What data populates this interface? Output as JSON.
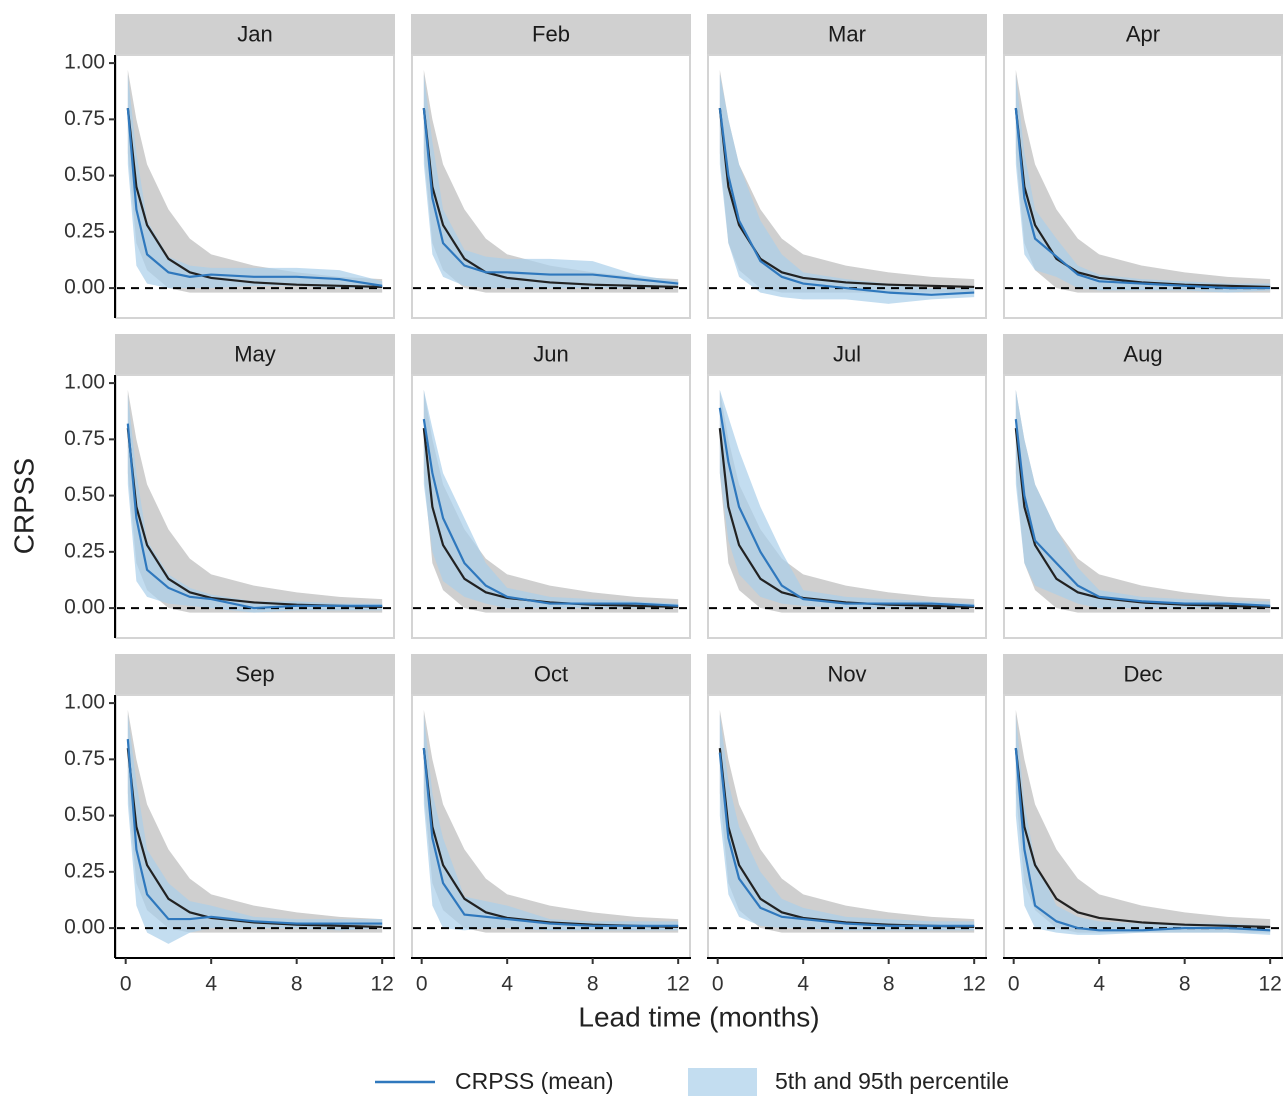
{
  "chart_data": {
    "type": "line",
    "xlabel": "Lead time (months)",
    "ylabel": "CRPSS",
    "xlim": [
      -0.5,
      12.6
    ],
    "ylim": [
      -0.133,
      1.036
    ],
    "xticks": [
      0,
      4,
      8,
      12
    ],
    "yticks": [
      {
        "value": 0,
        "label": "0.00"
      },
      {
        "value": 0.25,
        "label": "0.25"
      },
      {
        "value": 0.5,
        "label": "0.50"
      },
      {
        "value": 0.75,
        "label": "0.75"
      },
      {
        "value": 1,
        "label": "1.00"
      }
    ],
    "hline": 0,
    "x": [
      0.1,
      0.5,
      1,
      2,
      3,
      4,
      6,
      8,
      10,
      12
    ],
    "mean_line": {
      "name": "CRPSS (mean)",
      "color": "#2f78bd"
    },
    "percentile_band": {
      "name": "5th and 95th percentile",
      "color": "#a9cfea"
    },
    "reference_line": {
      "color": "#222222"
    },
    "reference_band": {
      "color": "#cfcfcf"
    },
    "panels": [
      {
        "title": "Jan",
        "reference_mean": [
          0.8,
          0.45,
          0.28,
          0.13,
          0.07,
          0.045,
          0.025,
          0.015,
          0.01,
          0.005
        ],
        "reference_lower": [
          0.6,
          0.2,
          0.08,
          0,
          -0.02,
          -0.02,
          -0.02,
          -0.02,
          -0.02,
          -0.02
        ],
        "reference_upper": [
          0.97,
          0.75,
          0.55,
          0.35,
          0.22,
          0.15,
          0.1,
          0.07,
          0.05,
          0.04
        ],
        "mean": [
          0.8,
          0.35,
          0.15,
          0.07,
          0.05,
          0.06,
          0.05,
          0.05,
          0.04,
          0.01
        ],
        "lower": [
          0.55,
          0.1,
          0.02,
          0,
          0,
          0,
          0.01,
          0.01,
          0,
          0
        ],
        "upper": [
          0.95,
          0.6,
          0.3,
          0.14,
          0.1,
          0.09,
          0.09,
          0.09,
          0.08,
          0.03
        ]
      },
      {
        "title": "Feb",
        "reference_mean": [
          0.8,
          0.45,
          0.28,
          0.13,
          0.07,
          0.045,
          0.025,
          0.015,
          0.01,
          0.005
        ],
        "reference_lower": [
          0.6,
          0.2,
          0.08,
          0,
          -0.02,
          -0.02,
          -0.02,
          -0.02,
          -0.02,
          -0.02
        ],
        "reference_upper": [
          0.97,
          0.75,
          0.55,
          0.35,
          0.22,
          0.15,
          0.1,
          0.07,
          0.05,
          0.04
        ],
        "mean": [
          0.8,
          0.4,
          0.2,
          0.1,
          0.07,
          0.07,
          0.06,
          0.06,
          0.04,
          0.02
        ],
        "lower": [
          0.55,
          0.15,
          0.05,
          0.01,
          0,
          0,
          0,
          0,
          0,
          0
        ],
        "upper": [
          0.95,
          0.65,
          0.35,
          0.17,
          0.14,
          0.13,
          0.13,
          0.12,
          0.06,
          0.03
        ]
      },
      {
        "title": "Mar",
        "reference_mean": [
          0.8,
          0.45,
          0.28,
          0.13,
          0.07,
          0.045,
          0.025,
          0.015,
          0.01,
          0.005
        ],
        "reference_lower": [
          0.6,
          0.2,
          0.08,
          0,
          -0.02,
          -0.02,
          -0.02,
          -0.02,
          -0.02,
          -0.02
        ],
        "reference_upper": [
          0.97,
          0.75,
          0.55,
          0.35,
          0.22,
          0.15,
          0.1,
          0.07,
          0.05,
          0.04
        ],
        "mean": [
          0.8,
          0.5,
          0.3,
          0.12,
          0.05,
          0.02,
          0,
          -0.02,
          -0.03,
          -0.02
        ],
        "lower": [
          0.55,
          0.2,
          0.05,
          -0.02,
          -0.04,
          -0.05,
          -0.05,
          -0.07,
          -0.05,
          -0.04
        ],
        "upper": [
          0.95,
          0.75,
          0.55,
          0.3,
          0.15,
          0.07,
          0.04,
          0.02,
          0,
          0
        ]
      },
      {
        "title": "Apr",
        "reference_mean": [
          0.8,
          0.45,
          0.28,
          0.13,
          0.07,
          0.045,
          0.025,
          0.015,
          0.01,
          0.005
        ],
        "reference_lower": [
          0.6,
          0.2,
          0.08,
          0,
          -0.02,
          -0.02,
          -0.02,
          -0.02,
          -0.02,
          -0.02
        ],
        "reference_upper": [
          0.97,
          0.75,
          0.55,
          0.35,
          0.22,
          0.15,
          0.1,
          0.07,
          0.05,
          0.04
        ],
        "mean": [
          0.8,
          0.4,
          0.22,
          0.14,
          0.06,
          0.03,
          0.02,
          0.01,
          0,
          0
        ],
        "lower": [
          0.55,
          0.15,
          0.08,
          0.05,
          0,
          -0.01,
          -0.01,
          -0.01,
          -0.02,
          -0.01
        ],
        "upper": [
          0.95,
          0.6,
          0.35,
          0.22,
          0.1,
          0.06,
          0.04,
          0.03,
          0.02,
          0.02
        ]
      },
      {
        "title": "May",
        "reference_mean": [
          0.8,
          0.45,
          0.28,
          0.13,
          0.07,
          0.045,
          0.025,
          0.015,
          0.01,
          0.005
        ],
        "reference_lower": [
          0.6,
          0.2,
          0.08,
          0,
          -0.02,
          -0.02,
          -0.02,
          -0.02,
          -0.02,
          -0.02
        ],
        "reference_upper": [
          0.97,
          0.75,
          0.55,
          0.35,
          0.22,
          0.15,
          0.1,
          0.07,
          0.05,
          0.04
        ],
        "mean": [
          0.82,
          0.4,
          0.17,
          0.09,
          0.05,
          0.04,
          0,
          0.01,
          0.01,
          0.01
        ],
        "lower": [
          0.55,
          0.12,
          0.05,
          0.02,
          0.01,
          0,
          -0.02,
          -0.01,
          -0.01,
          -0.01
        ],
        "upper": [
          0.95,
          0.6,
          0.3,
          0.15,
          0.09,
          0.06,
          0.03,
          0.03,
          0.02,
          0.02
        ]
      },
      {
        "title": "Jun",
        "reference_mean": [
          0.8,
          0.45,
          0.28,
          0.13,
          0.07,
          0.045,
          0.025,
          0.015,
          0.01,
          0.005
        ],
        "reference_lower": [
          0.6,
          0.2,
          0.08,
          0,
          -0.02,
          -0.02,
          -0.02,
          -0.02,
          -0.02,
          -0.02
        ],
        "reference_upper": [
          0.97,
          0.75,
          0.55,
          0.35,
          0.22,
          0.15,
          0.1,
          0.07,
          0.05,
          0.04
        ],
        "mean": [
          0.84,
          0.6,
          0.4,
          0.2,
          0.1,
          0.05,
          0.02,
          0.02,
          0.02,
          0.01
        ],
        "lower": [
          0.55,
          0.25,
          0.12,
          0.05,
          0.02,
          0,
          0,
          0,
          0,
          0
        ],
        "upper": [
          0.97,
          0.8,
          0.6,
          0.4,
          0.2,
          0.09,
          0.05,
          0.04,
          0.03,
          0.02
        ]
      },
      {
        "title": "Jul",
        "reference_mean": [
          0.8,
          0.45,
          0.28,
          0.13,
          0.07,
          0.045,
          0.025,
          0.015,
          0.01,
          0.005
        ],
        "reference_lower": [
          0.6,
          0.2,
          0.08,
          0,
          -0.02,
          -0.02,
          -0.02,
          -0.02,
          -0.02,
          -0.02
        ],
        "reference_upper": [
          0.97,
          0.75,
          0.55,
          0.35,
          0.22,
          0.15,
          0.1,
          0.07,
          0.05,
          0.04
        ],
        "mean": [
          0.89,
          0.65,
          0.45,
          0.25,
          0.1,
          0.04,
          0.02,
          0.02,
          0.02,
          0.01
        ],
        "lower": [
          0.6,
          0.3,
          0.15,
          0.05,
          0.02,
          0.01,
          0,
          0,
          0,
          0
        ],
        "upper": [
          0.97,
          0.85,
          0.7,
          0.45,
          0.25,
          0.08,
          0.05,
          0.04,
          0.03,
          0.02
        ]
      },
      {
        "title": "Aug",
        "reference_mean": [
          0.8,
          0.45,
          0.28,
          0.13,
          0.07,
          0.045,
          0.025,
          0.015,
          0.01,
          0.005
        ],
        "reference_lower": [
          0.6,
          0.2,
          0.08,
          0,
          -0.02,
          -0.02,
          -0.02,
          -0.02,
          -0.02,
          -0.02
        ],
        "reference_upper": [
          0.97,
          0.75,
          0.55,
          0.35,
          0.22,
          0.15,
          0.1,
          0.07,
          0.05,
          0.04
        ],
        "mean": [
          0.84,
          0.5,
          0.3,
          0.2,
          0.1,
          0.05,
          0.03,
          0.02,
          0.02,
          0.01
        ],
        "lower": [
          0.55,
          0.2,
          0.1,
          0.06,
          0.02,
          0,
          0,
          0,
          0,
          0
        ],
        "upper": [
          0.97,
          0.75,
          0.55,
          0.35,
          0.18,
          0.08,
          0.05,
          0.04,
          0.03,
          0.03
        ]
      },
      {
        "title": "Sep",
        "reference_mean": [
          0.8,
          0.45,
          0.28,
          0.13,
          0.07,
          0.045,
          0.025,
          0.015,
          0.01,
          0.005
        ],
        "reference_lower": [
          0.6,
          0.2,
          0.08,
          0,
          -0.02,
          -0.02,
          -0.02,
          -0.02,
          -0.02,
          -0.02
        ],
        "reference_upper": [
          0.97,
          0.75,
          0.55,
          0.35,
          0.22,
          0.15,
          0.1,
          0.07,
          0.05,
          0.04
        ],
        "mean": [
          0.84,
          0.35,
          0.15,
          0.04,
          0.04,
          0.05,
          0.03,
          0.02,
          0.02,
          0.02
        ],
        "lower": [
          0.55,
          0.1,
          -0.02,
          -0.07,
          -0.02,
          0,
          0,
          0,
          -0.01,
          0
        ],
        "upper": [
          0.95,
          0.65,
          0.35,
          0.2,
          0.12,
          0.1,
          0.05,
          0.04,
          0.04,
          0.04
        ]
      },
      {
        "title": "Oct",
        "reference_mean": [
          0.8,
          0.45,
          0.28,
          0.13,
          0.07,
          0.045,
          0.025,
          0.015,
          0.01,
          0.005
        ],
        "reference_lower": [
          0.6,
          0.2,
          0.08,
          0,
          -0.02,
          -0.02,
          -0.02,
          -0.02,
          -0.02,
          -0.02
        ],
        "reference_upper": [
          0.97,
          0.75,
          0.55,
          0.35,
          0.22,
          0.15,
          0.1,
          0.07,
          0.05,
          0.04
        ],
        "mean": [
          0.8,
          0.4,
          0.2,
          0.06,
          0.05,
          0.04,
          0.02,
          0.01,
          0.01,
          0.01
        ],
        "lower": [
          0.55,
          0.1,
          0,
          -0.01,
          0,
          0,
          -0.01,
          -0.01,
          -0.01,
          -0.01
        ],
        "upper": [
          0.95,
          0.6,
          0.4,
          0.14,
          0.12,
          0.1,
          0.04,
          0.03,
          0.03,
          0.03
        ]
      },
      {
        "title": "Nov",
        "reference_mean": [
          0.8,
          0.45,
          0.28,
          0.13,
          0.07,
          0.045,
          0.025,
          0.015,
          0.01,
          0.005
        ],
        "reference_lower": [
          0.6,
          0.2,
          0.08,
          0,
          -0.02,
          -0.02,
          -0.02,
          -0.02,
          -0.02,
          -0.02
        ],
        "reference_upper": [
          0.97,
          0.75,
          0.55,
          0.35,
          0.22,
          0.15,
          0.1,
          0.07,
          0.05,
          0.04
        ],
        "mean": [
          0.78,
          0.4,
          0.22,
          0.09,
          0.05,
          0.04,
          0.02,
          0.01,
          0.01,
          0.01
        ],
        "lower": [
          0.5,
          0.15,
          0.05,
          0.01,
          0,
          0,
          -0.01,
          -0.01,
          -0.01,
          -0.01
        ],
        "upper": [
          0.95,
          0.65,
          0.45,
          0.25,
          0.13,
          0.09,
          0.05,
          0.04,
          0.03,
          0.03
        ]
      },
      {
        "title": "Dec",
        "reference_mean": [
          0.8,
          0.45,
          0.28,
          0.13,
          0.07,
          0.045,
          0.025,
          0.015,
          0.01,
          0.005
        ],
        "reference_lower": [
          0.6,
          0.2,
          0.08,
          0,
          -0.02,
          -0.02,
          -0.02,
          -0.02,
          -0.02,
          -0.02
        ],
        "reference_upper": [
          0.97,
          0.75,
          0.55,
          0.35,
          0.22,
          0.15,
          0.1,
          0.07,
          0.05,
          0.04
        ],
        "mean": [
          0.8,
          0.35,
          0.1,
          0.03,
          0,
          -0.01,
          -0.01,
          0,
          0,
          -0.01
        ],
        "lower": [
          0.5,
          0.1,
          0,
          -0.02,
          -0.03,
          -0.03,
          -0.02,
          -0.02,
          -0.02,
          -0.03
        ],
        "upper": [
          0.95,
          0.55,
          0.3,
          0.1,
          0.05,
          0.03,
          0.02,
          0.02,
          0.02,
          0.01
        ]
      }
    ]
  }
}
